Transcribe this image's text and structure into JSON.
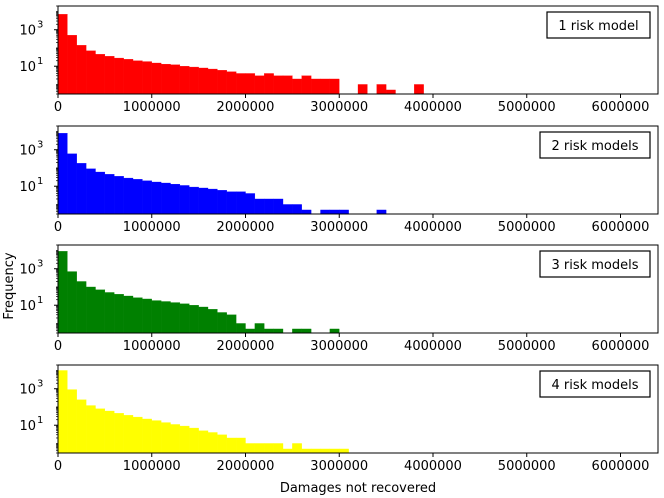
{
  "figure": {
    "ylabel": "Frequency",
    "xlabel": "Damages not recovered"
  },
  "chart_data": {
    "type": "bar",
    "layout": "4 vertically stacked histogram panels, shared x-axis",
    "x_axis": {
      "label": "Damages not recovered",
      "ticks": [
        0,
        1000000,
        2000000,
        3000000,
        4000000,
        5000000,
        6000000
      ],
      "tick_labels": [
        "0",
        "1000000",
        "2000000",
        "3000000",
        "4000000",
        "5000000",
        "6000000"
      ],
      "range": [
        0,
        6400000
      ]
    },
    "y_axis": {
      "label": "Frequency",
      "scale": "log",
      "ticks": [
        10,
        1000
      ],
      "range": [
        0.3,
        20000
      ]
    },
    "bin_width": 100000,
    "grid": false,
    "legend_position": "top-right",
    "panels": [
      {
        "name": "1 risk model",
        "color": "#ff0000",
        "bins": [
          [
            0,
            7000
          ],
          [
            100000,
            500
          ],
          [
            200000,
            140
          ],
          [
            300000,
            70
          ],
          [
            400000,
            45
          ],
          [
            500000,
            35
          ],
          [
            600000,
            28
          ],
          [
            700000,
            24
          ],
          [
            800000,
            20
          ],
          [
            900000,
            18
          ],
          [
            1000000,
            15
          ],
          [
            1100000,
            13
          ],
          [
            1200000,
            12
          ],
          [
            1300000,
            10
          ],
          [
            1400000,
            9
          ],
          [
            1500000,
            8
          ],
          [
            1600000,
            7
          ],
          [
            1700000,
            6
          ],
          [
            1800000,
            5
          ],
          [
            1900000,
            4
          ],
          [
            2000000,
            4
          ],
          [
            2100000,
            3
          ],
          [
            2200000,
            4
          ],
          [
            2300000,
            3
          ],
          [
            2400000,
            3
          ],
          [
            2500000,
            2
          ],
          [
            2600000,
            3
          ],
          [
            2700000,
            2
          ],
          [
            2800000,
            2
          ],
          [
            2900000,
            2
          ],
          [
            3200000,
            1
          ],
          [
            3400000,
            1
          ],
          [
            3500000,
            0.5
          ],
          [
            3800000,
            1
          ]
        ]
      },
      {
        "name": "2 risk models",
        "color": "#0000ff",
        "bins": [
          [
            0,
            8000
          ],
          [
            100000,
            600
          ],
          [
            200000,
            180
          ],
          [
            300000,
            90
          ],
          [
            400000,
            60
          ],
          [
            500000,
            45
          ],
          [
            600000,
            35
          ],
          [
            700000,
            28
          ],
          [
            800000,
            24
          ],
          [
            900000,
            20
          ],
          [
            1000000,
            17
          ],
          [
            1100000,
            15
          ],
          [
            1200000,
            13
          ],
          [
            1300000,
            11
          ],
          [
            1400000,
            9
          ],
          [
            1500000,
            8
          ],
          [
            1600000,
            7
          ],
          [
            1700000,
            6
          ],
          [
            1800000,
            5
          ],
          [
            1900000,
            5
          ],
          [
            2000000,
            4
          ],
          [
            2100000,
            2
          ],
          [
            2200000,
            2
          ],
          [
            2300000,
            2
          ],
          [
            2400000,
            1
          ],
          [
            2500000,
            1
          ],
          [
            2600000,
            0.5
          ],
          [
            2800000,
            0.5
          ],
          [
            2900000,
            0.5
          ],
          [
            3000000,
            0.5
          ],
          [
            3400000,
            0.5
          ]
        ]
      },
      {
        "name": "3 risk models",
        "color": "#008000",
        "bins": [
          [
            0,
            9000
          ],
          [
            100000,
            700
          ],
          [
            200000,
            200
          ],
          [
            300000,
            100
          ],
          [
            400000,
            70
          ],
          [
            500000,
            50
          ],
          [
            600000,
            40
          ],
          [
            700000,
            32
          ],
          [
            800000,
            26
          ],
          [
            900000,
            22
          ],
          [
            1000000,
            18
          ],
          [
            1100000,
            16
          ],
          [
            1200000,
            14
          ],
          [
            1300000,
            12
          ],
          [
            1400000,
            10
          ],
          [
            1500000,
            8
          ],
          [
            1600000,
            6
          ],
          [
            1700000,
            4
          ],
          [
            1800000,
            3
          ],
          [
            1900000,
            1
          ],
          [
            2000000,
            0.5
          ],
          [
            2100000,
            1
          ],
          [
            2200000,
            0.5
          ],
          [
            2300000,
            0.5
          ],
          [
            2500000,
            0.5
          ],
          [
            2600000,
            0.5
          ],
          [
            2900000,
            0.5
          ]
        ]
      },
      {
        "name": "4 risk models",
        "color": "#ffff00",
        "bins": [
          [
            0,
            10000
          ],
          [
            100000,
            900
          ],
          [
            200000,
            250
          ],
          [
            300000,
            120
          ],
          [
            400000,
            80
          ],
          [
            500000,
            60
          ],
          [
            600000,
            45
          ],
          [
            700000,
            35
          ],
          [
            800000,
            28
          ],
          [
            900000,
            22
          ],
          [
            1000000,
            18
          ],
          [
            1100000,
            14
          ],
          [
            1200000,
            11
          ],
          [
            1300000,
            9
          ],
          [
            1400000,
            7
          ],
          [
            1500000,
            5
          ],
          [
            1600000,
            4
          ],
          [
            1700000,
            3
          ],
          [
            1800000,
            2
          ],
          [
            1900000,
            2
          ],
          [
            2000000,
            1
          ],
          [
            2100000,
            1
          ],
          [
            2200000,
            1
          ],
          [
            2300000,
            1
          ],
          [
            2400000,
            0.5
          ],
          [
            2500000,
            1
          ],
          [
            2600000,
            0.5
          ],
          [
            2700000,
            0.5
          ],
          [
            2800000,
            0.5
          ],
          [
            2900000,
            0.5
          ],
          [
            3000000,
            0.5
          ]
        ]
      }
    ]
  }
}
